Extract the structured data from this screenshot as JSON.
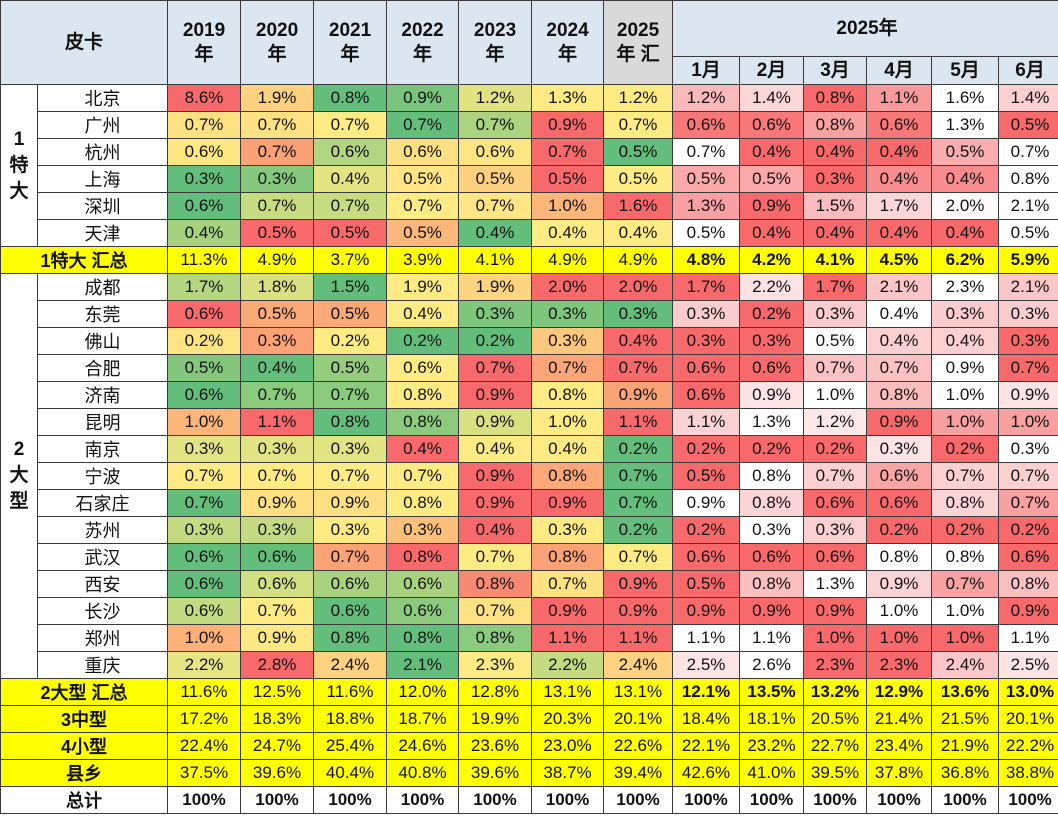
{
  "table": {
    "corner_label": "皮卡",
    "year_headers": [
      "2019\n年",
      "2020\n年",
      "2021\n年",
      "2022\n年",
      "2023\n年",
      "2024\n年",
      "2025\n年 汇"
    ],
    "monthly_group_header": "2025年",
    "month_headers": [
      "1月",
      "2月",
      "3月",
      "4月",
      "5月",
      "6月"
    ],
    "groups": [
      {
        "label": "1\n特\n大",
        "rows": [
          {
            "city": "北京",
            "years": [
              "8.6%",
              "1.9%",
              "0.8%",
              "0.9%",
              "1.2%",
              "1.3%",
              "1.2%"
            ],
            "months": [
              "1.2%",
              "1.4%",
              "0.8%",
              "1.1%",
              "1.6%",
              "1.4%"
            ],
            "ycolors": [
              "#f8696b",
              "#fdd17f",
              "#63be7b",
              "#78c47c",
              "#e1e383",
              "#ffeb84",
              "#ffeb84"
            ],
            "mcolors": [
              "#f9b8ba",
              "#fbd6d7",
              "#f8696b",
              "#f89a9c",
              "#ffffff",
              "#fcd0d1"
            ]
          },
          {
            "city": "广州",
            "years": [
              "0.7%",
              "0.7%",
              "0.7%",
              "0.7%",
              "0.7%",
              "0.9%",
              "0.7%"
            ],
            "months": [
              "0.6%",
              "0.6%",
              "0.8%",
              "0.6%",
              "1.3%",
              "0.5%"
            ],
            "ycolors": [
              "#fee282",
              "#fee182",
              "#ffeb84",
              "#63be7b",
              "#abd380",
              "#f8696b",
              "#ffeb84"
            ],
            "mcolors": [
              "#f8787a",
              "#f8787a",
              "#f9a2a4",
              "#f8787a",
              "#ffffff",
              "#f8696b"
            ]
          },
          {
            "city": "杭州",
            "years": [
              "0.6%",
              "0.7%",
              "0.6%",
              "0.6%",
              "0.6%",
              "0.7%",
              "0.5%"
            ],
            "months": [
              "0.7%",
              "0.4%",
              "0.4%",
              "0.4%",
              "0.5%",
              "0.7%"
            ],
            "ycolors": [
              "#fee683",
              "#fba176",
              "#b1d580",
              "#fde082",
              "#fde682",
              "#f8696b",
              "#63be7b"
            ],
            "mcolors": [
              "#ffffff",
              "#f8696b",
              "#f8696b",
              "#f8696b",
              "#faaeaf",
              "#ffffff"
            ]
          },
          {
            "city": "上海",
            "years": [
              "0.3%",
              "0.3%",
              "0.4%",
              "0.5%",
              "0.5%",
              "0.5%",
              "0.5%"
            ],
            "months": [
              "0.5%",
              "0.5%",
              "0.3%",
              "0.4%",
              "0.4%",
              "0.8%"
            ],
            "ycolors": [
              "#63be7b",
              "#86c87d",
              "#e5e483",
              "#ffe583",
              "#fdd17f",
              "#f8696b",
              "#ffeb84"
            ],
            "mcolors": [
              "#faa8aa",
              "#faa8aa",
              "#f8696b",
              "#f98c8e",
              "#f98c8e",
              "#ffffff"
            ]
          },
          {
            "city": "深圳",
            "years": [
              "0.6%",
              "0.7%",
              "0.7%",
              "0.7%",
              "0.7%",
              "1.0%",
              "1.6%"
            ],
            "months": [
              "1.3%",
              "0.9%",
              "1.5%",
              "1.7%",
              "2.0%",
              "2.1%"
            ],
            "ycolors": [
              "#63be7b",
              "#c7dc81",
              "#c7dc81",
              "#ffeb84",
              "#ffe583",
              "#fcb679",
              "#f8696b"
            ],
            "mcolors": [
              "#f8a0a2",
              "#f8696b",
              "#fabcbe",
              "#fbd6d7",
              "#fefafa",
              "#ffffff"
            ]
          },
          {
            "city": "天津",
            "years": [
              "0.4%",
              "0.5%",
              "0.5%",
              "0.5%",
              "0.4%",
              "0.4%",
              "0.4%"
            ],
            "months": [
              "0.5%",
              "0.4%",
              "0.4%",
              "0.4%",
              "0.4%",
              "0.5%"
            ],
            "ycolors": [
              "#a6d27f",
              "#f8696b",
              "#f8696b",
              "#fcb77a",
              "#63be7b",
              "#ffeb84",
              "#ffeb84"
            ],
            "mcolors": [
              "#ffffff",
              "#f8696b",
              "#f8696b",
              "#f8696b",
              "#f8696b",
              "#ffffff"
            ]
          }
        ],
        "subtotal": {
          "label": "1特大 汇总",
          "years": [
            "11.3%",
            "4.9%",
            "3.7%",
            "3.9%",
            "4.1%",
            "4.9%",
            "4.9%"
          ],
          "months": [
            "4.8%",
            "4.2%",
            "4.1%",
            "4.5%",
            "6.2%",
            "5.9%"
          ]
        }
      },
      {
        "label": "2\n大\n型",
        "rows": [
          {
            "city": "成都",
            "years": [
              "1.7%",
              "1.8%",
              "1.5%",
              "1.9%",
              "1.9%",
              "2.0%",
              "2.0%"
            ],
            "months": [
              "1.7%",
              "2.2%",
              "1.7%",
              "2.1%",
              "2.3%",
              "2.1%"
            ],
            "ycolors": [
              "#b5d680",
              "#d9e082",
              "#63be7b",
              "#ffeb84",
              "#fdd47f",
              "#f8696b",
              "#f8696b"
            ],
            "mcolors": [
              "#f8696b",
              "#fde2e3",
              "#f8696b",
              "#fbc6c7",
              "#ffffff",
              "#fbc6c7"
            ]
          },
          {
            "city": "东莞",
            "years": [
              "0.6%",
              "0.5%",
              "0.5%",
              "0.4%",
              "0.3%",
              "0.3%",
              "0.3%"
            ],
            "months": [
              "0.3%",
              "0.2%",
              "0.3%",
              "0.4%",
              "0.3%",
              "0.3%"
            ],
            "ycolors": [
              "#f8696b",
              "#fba977",
              "#fba977",
              "#ffeb84",
              "#7fc67d",
              "#7fc67d",
              "#63be7b"
            ],
            "mcolors": [
              "#fbcccd",
              "#f8696b",
              "#fbcccd",
              "#ffffff",
              "#fbcccd",
              "#fbcccd"
            ]
          },
          {
            "city": "佛山",
            "years": [
              "0.2%",
              "0.3%",
              "0.2%",
              "0.2%",
              "0.2%",
              "0.3%",
              "0.4%"
            ],
            "months": [
              "0.3%",
              "0.3%",
              "0.5%",
              "0.4%",
              "0.4%",
              "0.3%"
            ],
            "ycolors": [
              "#fee482",
              "#fba276",
              "#ffeb84",
              "#63be7b",
              "#63be7b",
              "#fdc77d",
              "#f8696b"
            ],
            "mcolors": [
              "#f8696b",
              "#f8696b",
              "#ffffff",
              "#fcd0d1",
              "#fcd0d1",
              "#f8696b"
            ]
          },
          {
            "city": "合肥",
            "years": [
              "0.5%",
              "0.4%",
              "0.5%",
              "0.6%",
              "0.7%",
              "0.7%",
              "0.7%"
            ],
            "months": [
              "0.6%",
              "0.6%",
              "0.7%",
              "0.7%",
              "0.9%",
              "0.7%"
            ],
            "ycolors": [
              "#84c77c",
              "#63be7b",
              "#95cc7e",
              "#ffeb84",
              "#f8696b",
              "#fca577",
              "#f8696b"
            ],
            "mcolors": [
              "#f8696b",
              "#f8696b",
              "#fbc2c3",
              "#fbc2c3",
              "#ffffff",
              "#f8696b"
            ]
          },
          {
            "city": "济南",
            "years": [
              "0.6%",
              "0.7%",
              "0.7%",
              "0.8%",
              "0.9%",
              "0.8%",
              "0.9%"
            ],
            "months": [
              "0.6%",
              "0.9%",
              "1.0%",
              "0.8%",
              "1.0%",
              "0.9%"
            ],
            "ycolors": [
              "#63be7b",
              "#8acb7d",
              "#8acb7d",
              "#ffeb84",
              "#f8696b",
              "#ffeb84",
              "#fba476"
            ],
            "mcolors": [
              "#f8696b",
              "#fde4e4",
              "#ffffff",
              "#fbbcbd",
              "#ffffff",
              "#fde4e4"
            ]
          },
          {
            "city": "昆明",
            "years": [
              "1.0%",
              "1.1%",
              "0.8%",
              "0.8%",
              "0.9%",
              "1.0%",
              "1.1%"
            ],
            "months": [
              "1.1%",
              "1.3%",
              "1.2%",
              "0.9%",
              "1.0%",
              "1.0%"
            ],
            "ycolors": [
              "#fcb579",
              "#f8696b",
              "#63be7b",
              "#8ccb7d",
              "#d9e082",
              "#ffeb84",
              "#f8696b"
            ],
            "mcolors": [
              "#fbd2d3",
              "#ffffff",
              "#fde8e8",
              "#f8696b",
              "#f9a0a1",
              "#f9a0a1"
            ]
          },
          {
            "city": "南京",
            "years": [
              "0.3%",
              "0.3%",
              "0.3%",
              "0.4%",
              "0.4%",
              "0.4%",
              "0.2%"
            ],
            "months": [
              "0.2%",
              "0.2%",
              "0.2%",
              "0.3%",
              "0.2%",
              "0.3%"
            ],
            "ycolors": [
              "#e2e383",
              "#e2e383",
              "#e2e383",
              "#f8696b",
              "#ffeb84",
              "#ffeb84",
              "#63be7b"
            ],
            "mcolors": [
              "#f8696b",
              "#f8696b",
              "#f8696b",
              "#fde4e4",
              "#f8696b",
              "#ffffff"
            ]
          },
          {
            "city": "宁波",
            "years": [
              "0.7%",
              "0.7%",
              "0.7%",
              "0.7%",
              "0.9%",
              "0.8%",
              "0.7%"
            ],
            "months": [
              "0.5%",
              "0.8%",
              "0.7%",
              "0.6%",
              "0.7%",
              "0.7%"
            ],
            "ycolors": [
              "#ffeb84",
              "#ffeb84",
              "#ffeb84",
              "#ffeb84",
              "#f8696b",
              "#fda878",
              "#63be7b"
            ],
            "mcolors": [
              "#f8696b",
              "#ffffff",
              "#fbd0d1",
              "#f9a4a5",
              "#fbd0d1",
              "#fbd0d1"
            ]
          },
          {
            "city": "石家庄",
            "years": [
              "0.7%",
              "0.9%",
              "0.9%",
              "0.8%",
              "0.9%",
              "0.9%",
              "0.7%"
            ],
            "months": [
              "0.9%",
              "0.8%",
              "0.6%",
              "0.6%",
              "0.8%",
              "0.7%"
            ],
            "ycolors": [
              "#63be7b",
              "#fee082",
              "#fee082",
              "#ffeb84",
              "#f8696b",
              "#f8696b",
              "#63be7b"
            ],
            "mcolors": [
              "#ffffff",
              "#fbd4d5",
              "#f8696b",
              "#f8696b",
              "#fbd4d5",
              "#f9a0a2"
            ]
          },
          {
            "city": "苏州",
            "years": [
              "0.3%",
              "0.3%",
              "0.3%",
              "0.3%",
              "0.4%",
              "0.3%",
              "0.2%"
            ],
            "months": [
              "0.2%",
              "0.3%",
              "0.3%",
              "0.2%",
              "0.2%",
              "0.2%"
            ],
            "ycolors": [
              "#c4db81",
              "#c4db81",
              "#ffeb84",
              "#fcc07b",
              "#f8696b",
              "#ffeb84",
              "#63be7b"
            ],
            "mcolors": [
              "#f8696b",
              "#ffffff",
              "#fbd0d1",
              "#f8696b",
              "#f8696b",
              "#f8696b"
            ]
          },
          {
            "city": "武汉",
            "years": [
              "0.6%",
              "0.6%",
              "0.7%",
              "0.8%",
              "0.7%",
              "0.8%",
              "0.7%"
            ],
            "months": [
              "0.6%",
              "0.6%",
              "0.6%",
              "0.8%",
              "0.8%",
              "0.6%"
            ],
            "ycolors": [
              "#63be7b",
              "#63be7b",
              "#fba276",
              "#f8696b",
              "#ffeb84",
              "#fba276",
              "#ffeb84"
            ],
            "mcolors": [
              "#f8696b",
              "#f8696b",
              "#f8696b",
              "#ffffff",
              "#ffffff",
              "#f8696b"
            ]
          },
          {
            "city": "西安",
            "years": [
              "0.6%",
              "0.6%",
              "0.6%",
              "0.6%",
              "0.8%",
              "0.7%",
              "0.9%"
            ],
            "months": [
              "0.5%",
              "0.8%",
              "1.3%",
              "0.9%",
              "0.7%",
              "0.8%"
            ],
            "ycolors": [
              "#63be7b",
              "#d2df82",
              "#a9d27f",
              "#a9d27f",
              "#f98a72",
              "#fee282",
              "#f8696b"
            ],
            "mcolors": [
              "#f8696b",
              "#fbbfc0",
              "#ffffff",
              "#fcd3d4",
              "#f9a2a3",
              "#fbbfc0"
            ]
          },
          {
            "city": "长沙",
            "years": [
              "0.6%",
              "0.7%",
              "0.6%",
              "0.6%",
              "0.7%",
              "0.9%",
              "0.9%"
            ],
            "months": [
              "0.9%",
              "0.9%",
              "0.9%",
              "1.0%",
              "1.0%",
              "0.9%"
            ],
            "ycolors": [
              "#c3db81",
              "#ffeb84",
              "#63be7b",
              "#8ccb7d",
              "#fee282",
              "#f8696b",
              "#f8696b"
            ],
            "mcolors": [
              "#f8696b",
              "#f8696b",
              "#f8696b",
              "#ffffff",
              "#ffffff",
              "#f8696b"
            ]
          },
          {
            "city": "郑州",
            "years": [
              "1.0%",
              "0.9%",
              "0.8%",
              "0.8%",
              "0.8%",
              "1.1%",
              "1.1%"
            ],
            "months": [
              "1.1%",
              "1.1%",
              "1.0%",
              "1.0%",
              "1.0%",
              "1.1%"
            ],
            "ycolors": [
              "#fbb178",
              "#fee883",
              "#63be7b",
              "#63be7b",
              "#8bcb7d",
              "#f8696b",
              "#f8696b"
            ],
            "mcolors": [
              "#ffffff",
              "#ffffff",
              "#f8696b",
              "#f8696b",
              "#f8696b",
              "#ffffff"
            ]
          },
          {
            "city": "重庆",
            "years": [
              "2.2%",
              "2.8%",
              "2.4%",
              "2.1%",
              "2.3%",
              "2.2%",
              "2.4%"
            ],
            "months": [
              "2.5%",
              "2.6%",
              "2.3%",
              "2.3%",
              "2.4%",
              "2.5%"
            ],
            "ycolors": [
              "#e6e483",
              "#f8696b",
              "#fed280",
              "#63be7b",
              "#ffeb84",
              "#c5db81",
              "#fed280"
            ],
            "mcolors": [
              "#fde4e4",
              "#ffffff",
              "#f8696b",
              "#f8696b",
              "#fbc7c8",
              "#fde4e4"
            ]
          }
        ],
        "subtotal": {
          "label": "2大型 汇总",
          "years": [
            "11.6%",
            "12.5%",
            "11.6%",
            "12.0%",
            "12.8%",
            "13.1%",
            "13.1%"
          ],
          "months": [
            "12.1%",
            "13.5%",
            "13.2%",
            "12.9%",
            "13.6%",
            "13.0%"
          ]
        }
      }
    ],
    "summary_rows": [
      {
        "label": "3中型",
        "years": [
          "17.2%",
          "18.3%",
          "18.8%",
          "18.7%",
          "19.9%",
          "20.3%",
          "20.1%"
        ],
        "months": [
          "18.4%",
          "18.1%",
          "20.5%",
          "21.4%",
          "21.5%",
          "20.1%"
        ]
      },
      {
        "label": "4小型",
        "years": [
          "22.4%",
          "24.7%",
          "25.4%",
          "24.6%",
          "23.6%",
          "23.0%",
          "22.6%"
        ],
        "months": [
          "22.1%",
          "23.2%",
          "22.7%",
          "23.4%",
          "21.9%",
          "22.2%"
        ]
      },
      {
        "label": "县乡",
        "years": [
          "37.5%",
          "39.6%",
          "40.4%",
          "40.8%",
          "39.6%",
          "38.7%",
          "39.4%"
        ],
        "months": [
          "42.6%",
          "41.0%",
          "39.5%",
          "37.8%",
          "36.8%",
          "38.8%"
        ]
      }
    ],
    "total_row": {
      "label": "总计",
      "years": [
        "100%",
        "100%",
        "100%",
        "100%",
        "100%",
        "100%",
        "100%"
      ],
      "months": [
        "100%",
        "100%",
        "100%",
        "100%",
        "100%",
        "100%"
      ]
    }
  },
  "colors": {
    "header_bg": "#dce6f1",
    "header_2025_bg": "#d9d9d9",
    "highlight_yellow": "#ffff00",
    "scale_green": "#63be7b",
    "scale_yellow": "#ffeb84",
    "scale_red": "#f8696b"
  }
}
